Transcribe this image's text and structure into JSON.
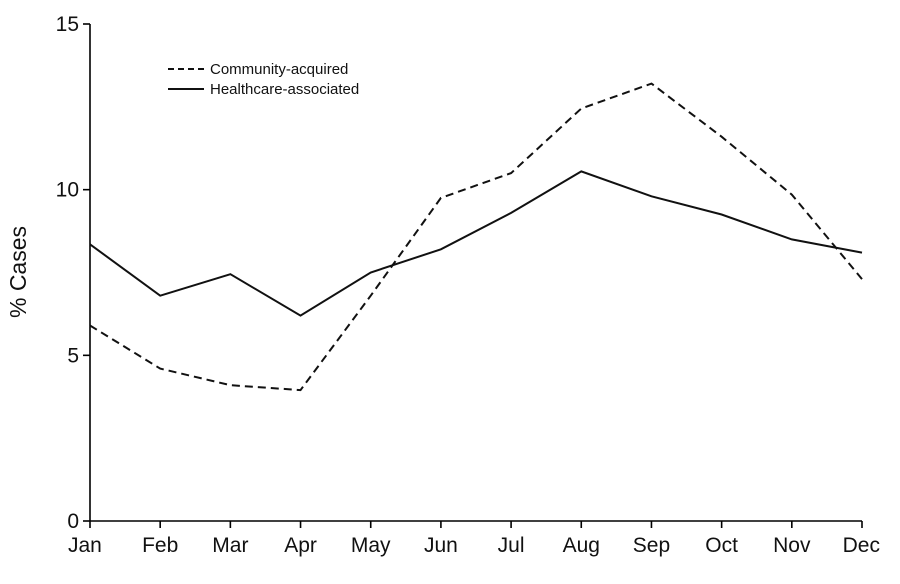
{
  "chart_data": {
    "type": "line",
    "categories": [
      "Jan",
      "Feb",
      "Mar",
      "Apr",
      "May",
      "Jun",
      "Jul",
      "Aug",
      "Sep",
      "Oct",
      "Nov",
      "Dec"
    ],
    "series": [
      {
        "name": "Community-acquired",
        "style": "dashed",
        "color": "#111111",
        "values": [
          5.9,
          4.6,
          4.1,
          3.95,
          6.8,
          9.75,
          10.5,
          12.45,
          13.2,
          11.6,
          9.85,
          7.3
        ]
      },
      {
        "name": "Healthcare-associated",
        "style": "solid",
        "color": "#111111",
        "values": [
          8.35,
          6.8,
          7.45,
          6.2,
          7.5,
          8.2,
          9.3,
          10.55,
          9.8,
          9.25,
          8.5,
          8.1
        ]
      }
    ],
    "title": "",
    "xlabel": "",
    "ylabel": "% Cases",
    "ylim": [
      0,
      15
    ],
    "yticks": [
      0,
      5,
      10,
      15
    ],
    "grid": false,
    "legend_position": "top-left"
  }
}
